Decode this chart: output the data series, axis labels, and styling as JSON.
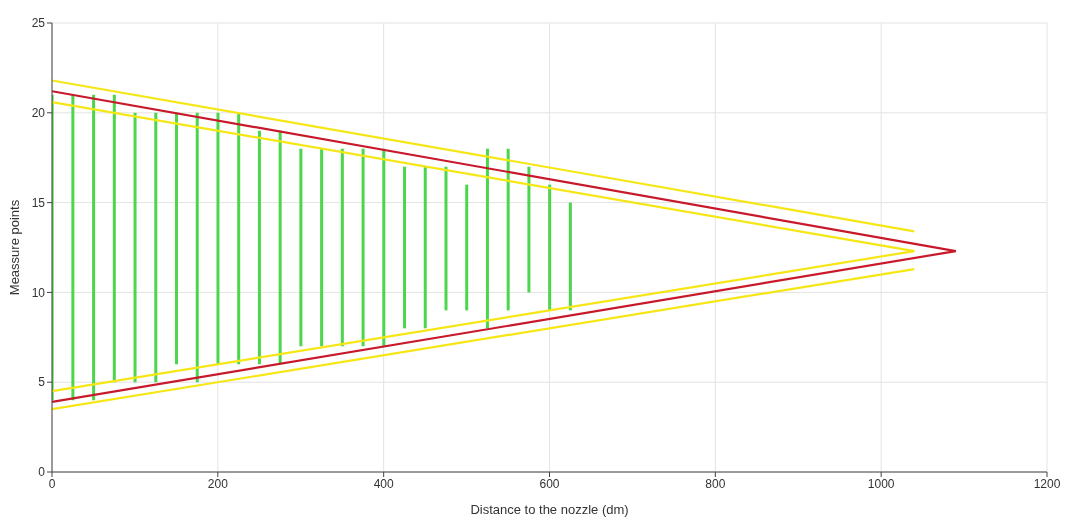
{
  "chart_data": {
    "type": "bar",
    "xlabel": "Distance to the nozzle (dm)",
    "ylabel": "Meassure points",
    "xlim": [
      0,
      1200
    ],
    "xticks": [
      0,
      200,
      400,
      600,
      800,
      1000,
      1200
    ],
    "ylim": [
      0,
      25
    ],
    "yticks": [
      0,
      5,
      10,
      15,
      20,
      25
    ],
    "grid": true,
    "series": [
      {
        "color": "#4cd64c",
        "x": [
          0,
          25,
          50,
          75,
          100,
          125,
          150,
          175,
          200,
          225,
          250,
          275,
          300,
          325,
          350,
          375,
          400,
          425,
          450,
          475,
          500,
          525,
          550,
          575,
          600,
          625
        ],
        "base": [
          4,
          4,
          4,
          5,
          5,
          5,
          6,
          5,
          6,
          6,
          6,
          6,
          7,
          7,
          7,
          7,
          7,
          8,
          8,
          9,
          9,
          8,
          9,
          10,
          9,
          9
        ],
        "values": [
          17,
          17,
          17,
          16,
          15,
          15,
          14,
          15,
          14,
          14,
          13,
          13,
          11,
          11,
          11,
          11,
          11,
          9,
          9,
          8,
          7,
          10,
          9,
          7,
          7,
          6
        ]
      },
      {
        "type": "line",
        "color": "#f5e614",
        "x": [
          0,
          1040
        ],
        "values": [
          21.8,
          13.4
        ]
      },
      {
        "type": "line",
        "color": "#f5e614",
        "x": [
          0,
          1040
        ],
        "values": [
          20.6,
          12.3
        ]
      },
      {
        "type": "line",
        "color": "#f5e614",
        "x": [
          0,
          1040
        ],
        "values": [
          4.5,
          12.3
        ]
      },
      {
        "type": "line",
        "color": "#f5e614",
        "x": [
          0,
          1040
        ],
        "values": [
          3.5,
          11.3
        ]
      },
      {
        "type": "line",
        "color": "#c8182a",
        "x": [
          0,
          1090
        ],
        "values": [
          21.2,
          12.3
        ]
      },
      {
        "type": "line",
        "color": "#c8182a",
        "x": [
          0,
          1090
        ],
        "values": [
          3.9,
          12.3
        ]
      }
    ]
  }
}
